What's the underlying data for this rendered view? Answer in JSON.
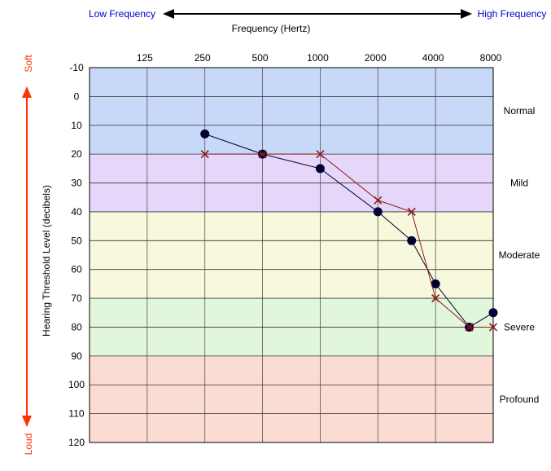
{
  "chart_data": {
    "type": "scatter",
    "xlabel": "Frequency (Hertz)",
    "ylabel": "Hearing Threshold Level (decibels)",
    "x_ticks": [
      "125",
      "250",
      "500",
      "1000",
      "2000",
      "4000",
      "8000"
    ],
    "y_ticks": [
      -10,
      0,
      10,
      20,
      30,
      40,
      50,
      60,
      70,
      80,
      90,
      100,
      110,
      120
    ],
    "y_range": [
      -10,
      120
    ],
    "y_inverted": true,
    "x_scale": "log2",
    "grid": true,
    "frequency_arrow": {
      "left": "Low Frequency",
      "right": "High Frequency"
    },
    "level_arrow": {
      "top": "Soft",
      "bottom": "Loud"
    },
    "bands": [
      {
        "label": "Normal",
        "from": -10,
        "to": 20,
        "color": "#c8d8f8"
      },
      {
        "label": "Mild",
        "from": 20,
        "to": 40,
        "color": "#e6d6fa"
      },
      {
        "label": "Moderate",
        "from": 40,
        "to": 70,
        "color": "#f8f8dc"
      },
      {
        "label": "Severe",
        "from": 70,
        "to": 90,
        "color": "#e2f6dc"
      },
      {
        "label": "Profound",
        "from": 90,
        "to": 120,
        "color": "#fadcd2"
      }
    ],
    "series": [
      {
        "marker": "circle",
        "color": "#000033",
        "points": [
          [
            250,
            13
          ],
          [
            500,
            20
          ],
          [
            1000,
            25
          ],
          [
            2000,
            40
          ],
          [
            3000,
            50
          ],
          [
            4000,
            65
          ],
          [
            6000,
            80
          ],
          [
            8000,
            75
          ]
        ]
      },
      {
        "marker": "x",
        "color": "#8b1a1a",
        "points": [
          [
            250,
            20
          ],
          [
            500,
            20
          ],
          [
            1000,
            20
          ],
          [
            2000,
            36
          ],
          [
            3000,
            40
          ],
          [
            4000,
            70
          ],
          [
            6000,
            80
          ],
          [
            8000,
            80
          ]
        ]
      }
    ]
  }
}
